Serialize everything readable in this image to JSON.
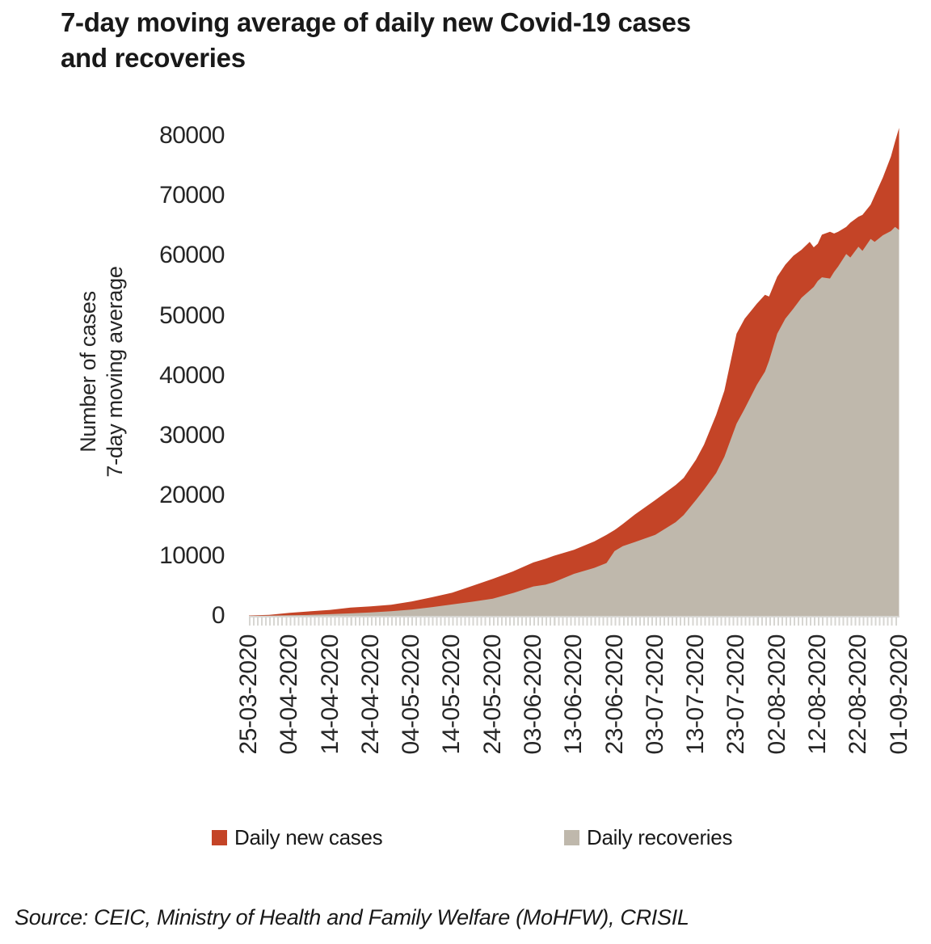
{
  "title_line1": "7-day moving average of daily new Covid-19 cases",
  "title_line2": "and recoveries",
  "source": "Source: CEIC, Ministry of Health and Family Welfare (MoHFW), CRISIL",
  "colors": {
    "cases_red": "#c44427",
    "recoveries_tan": "#bfb8ac",
    "axis_grey": "#d7d6d2",
    "text_dark": "#191919",
    "text_axis": "#262626"
  },
  "legend": [
    {
      "label": "Daily new cases",
      "color": "#c44427"
    },
    {
      "label": "Daily recoveries",
      "color": "#bfb8ac"
    }
  ],
  "chart_data": {
    "type": "area",
    "title": "7-day moving average of daily new Covid-19 cases and recoveries",
    "ylabel_line1": "Number of cases",
    "ylabel_line2": "7-day moving average",
    "ylim": [
      0,
      82000
    ],
    "grid": false,
    "legend_position": "bottom",
    "yticks": [
      0,
      10000,
      20000,
      30000,
      40000,
      50000,
      60000,
      70000,
      80000
    ],
    "xtick_labels": [
      "25-03-2020",
      "04-04-2020",
      "14-04-2020",
      "24-04-2020",
      "04-05-2020",
      "14-05-2020",
      "24-05-2020",
      "03-06-2020",
      "13-06-2020",
      "23-06-2020",
      "03-07-2020",
      "13-07-2020",
      "23-07-2020",
      "02-08-2020",
      "12-08-2020",
      "22-08-2020",
      "01-09-2020"
    ],
    "xtick_day_offsets": [
      0,
      10,
      20,
      30,
      40,
      50,
      60,
      70,
      80,
      90,
      100,
      110,
      120,
      130,
      140,
      150,
      160
    ],
    "x_start_date": "25-03-2020",
    "x_end_date": "01-09-2020",
    "sample_dates": [
      "25-03-2020",
      "30-03-2020",
      "04-04-2020",
      "09-04-2020",
      "14-04-2020",
      "19-04-2020",
      "24-04-2020",
      "29-04-2020",
      "04-05-2020",
      "09-05-2020",
      "14-05-2020",
      "19-05-2020",
      "24-05-2020",
      "29-05-2020",
      "03-06-2020",
      "06-06-2020",
      "08-06-2020",
      "13-06-2020",
      "18-06-2020",
      "21-06-2020",
      "23-06-2020",
      "25-06-2020",
      "28-06-2020",
      "03-07-2020",
      "08-07-2020",
      "10-07-2020",
      "13-07-2020",
      "15-07-2020",
      "18-07-2020",
      "20-07-2020",
      "23-07-2020",
      "25-07-2020",
      "28-07-2020",
      "30-07-2020",
      "31-07-2020",
      "02-08-2020",
      "04-08-2020",
      "06-08-2020",
      "08-08-2020",
      "10-08-2020",
      "11-08-2020",
      "12-08-2020",
      "13-08-2020",
      "15-08-2020",
      "16-08-2020",
      "17-08-2020",
      "19-08-2020",
      "20-08-2020",
      "22-08-2020",
      "23-08-2020",
      "25-08-2020",
      "26-08-2020",
      "28-08-2020",
      "30-08-2020",
      "31-08-2020",
      "01-09-2020"
    ],
    "sample_day_offsets": [
      0,
      5,
      10,
      15,
      20,
      25,
      30,
      35,
      40,
      45,
      50,
      55,
      60,
      65,
      70,
      73,
      75,
      80,
      85,
      88,
      90,
      92,
      95,
      100,
      105,
      107,
      110,
      112,
      115,
      117,
      120,
      122,
      125,
      127,
      128,
      130,
      132,
      134,
      136,
      138,
      139,
      140,
      141,
      143,
      144,
      145,
      147,
      148,
      150,
      151,
      153,
      154,
      156,
      158,
      159,
      160
    ],
    "series": [
      {
        "name": "Daily new cases",
        "color": "#c44427",
        "values": [
          70,
          160,
          500,
          760,
          1000,
          1380,
          1580,
          1850,
          2400,
          3100,
          3850,
          5000,
          6150,
          7400,
          8900,
          9500,
          10000,
          11000,
          12400,
          13500,
          14300,
          15300,
          16900,
          19300,
          21800,
          23000,
          26000,
          28500,
          33500,
          37500,
          47000,
          49500,
          52000,
          53500,
          53200,
          56500,
          58500,
          60000,
          61000,
          62300,
          61400,
          62000,
          63500,
          64000,
          63700,
          64000,
          64800,
          65500,
          66500,
          66800,
          68500,
          70000,
          73000,
          76500,
          79000,
          81300
        ]
      },
      {
        "name": "Daily recoveries",
        "color": "#bfb8ac",
        "values": [
          20,
          40,
          100,
          160,
          280,
          420,
          580,
          780,
          1050,
          1450,
          1900,
          2350,
          2850,
          3800,
          4900,
          5200,
          5600,
          7000,
          8000,
          8800,
          10800,
          11600,
          12300,
          13500,
          15600,
          16800,
          19300,
          21000,
          23800,
          26500,
          32000,
          34500,
          38500,
          40700,
          42500,
          47000,
          49500,
          51200,
          53000,
          54200,
          54800,
          55800,
          56400,
          56200,
          57300,
          58200,
          60300,
          59700,
          61500,
          60800,
          62800,
          62300,
          63400,
          64100,
          64800,
          64300
        ]
      }
    ]
  }
}
